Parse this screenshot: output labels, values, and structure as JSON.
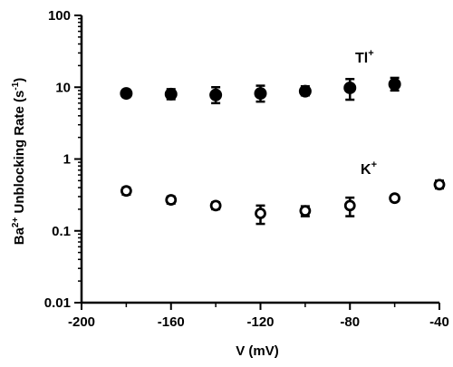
{
  "chart_data": {
    "type": "scatter",
    "xlabel": "V (mV)",
    "ylabel": {
      "prefix": "Ba",
      "superscript": "2+",
      "middle": " Unblocking Rate (s",
      "exponent": "-1",
      "suffix": ")"
    },
    "xlim": [
      -200,
      -40
    ],
    "ylim": [
      0.01,
      100
    ],
    "y_scale": "log",
    "x_ticks": [
      -200,
      -160,
      -120,
      -80,
      -40
    ],
    "x_tick_labels": [
      "-200",
      "-160",
      "-120",
      "-80",
      "-40"
    ],
    "y_ticks": [
      0.01,
      0.1,
      1,
      10,
      100
    ],
    "y_tick_labels": [
      "0.01",
      "0.1",
      "1",
      "10",
      "100"
    ],
    "grid": false,
    "series": [
      {
        "name": "Tl+",
        "label_base": "Tl",
        "label_sup": "+",
        "marker": "filled-circle",
        "x": [
          -180,
          -160,
          -140,
          -120,
          -100,
          -80,
          -60
        ],
        "y": [
          8.2,
          8.0,
          7.8,
          8.2,
          8.8,
          9.8,
          11.0
        ],
        "err_low": [
          7.3,
          6.8,
          6.0,
          6.3,
          7.7,
          6.7,
          9.0
        ],
        "err_high": [
          9.2,
          9.4,
          10.0,
          10.5,
          10.3,
          13.0,
          13.5
        ]
      },
      {
        "name": "K+",
        "label_base": "K",
        "label_sup": "+",
        "marker": "open-circle",
        "x": [
          -180,
          -160,
          -140,
          -120,
          -100,
          -80,
          -60,
          -40
        ],
        "y": [
          0.36,
          0.27,
          0.225,
          0.175,
          0.19,
          0.225,
          0.285,
          0.44
        ],
        "err_low": [
          0.32,
          0.24,
          0.2,
          0.125,
          0.16,
          0.16,
          0.26,
          0.39
        ],
        "err_high": [
          0.4,
          0.3,
          0.25,
          0.225,
          0.22,
          0.29,
          0.31,
          0.5
        ]
      }
    ]
  }
}
